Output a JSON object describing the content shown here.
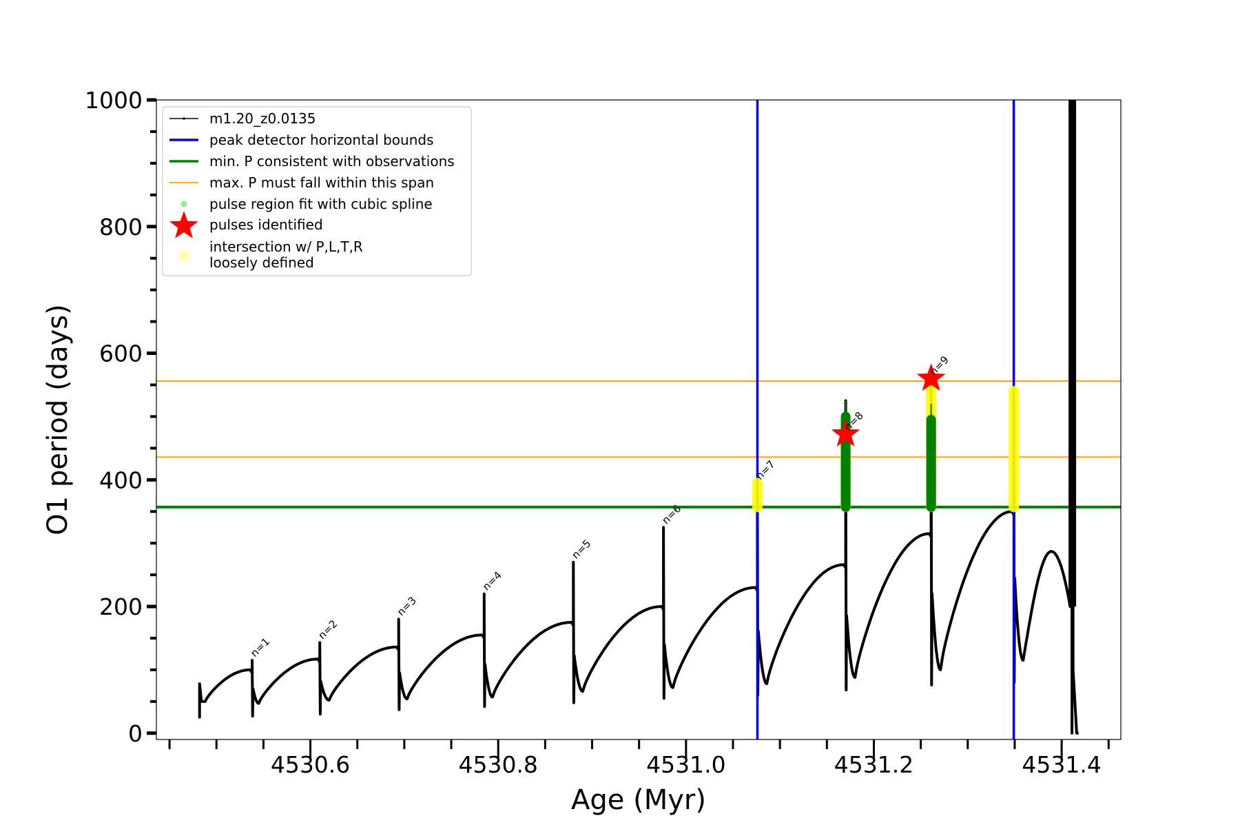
{
  "chart_data": {
    "type": "line",
    "xlabel": "Age (Myr)",
    "ylabel": "O1 period (days)",
    "xlim": [
      4530.436,
      4531.463
    ],
    "ylim": [
      -10,
      1000
    ],
    "x_ticks": [
      4530.6,
      4530.8,
      4531.0,
      4531.2,
      4531.4
    ],
    "x_tick_labels": [
      "4530.6",
      "4530.8",
      "4531.0",
      "4531.2",
      "4531.4"
    ],
    "y_ticks": [
      0,
      200,
      400,
      600,
      800,
      1000
    ],
    "y_tick_labels": [
      "0",
      "200",
      "400",
      "600",
      "800",
      "1000"
    ],
    "x_minor_step": 0.05,
    "y_minor_step": 50,
    "grid": false,
    "legend_placement": "top-left",
    "legend": [
      {
        "label": "m1.20_z0.0135",
        "kind": "line-dot",
        "color": "#000000"
      },
      {
        "label": "peak detector horizontal bounds",
        "kind": "line",
        "color": "#0000ff"
      },
      {
        "label": "min. P consistent with observations",
        "kind": "line",
        "color": "#008000"
      },
      {
        "label": "max. P must fall within this span",
        "kind": "thin-line",
        "color": "#ffa500"
      },
      {
        "label": "pulse region fit with cubic spline",
        "kind": "dot",
        "color": "#90ee90"
      },
      {
        "label": "pulses identified",
        "kind": "star",
        "color": "#ff0000"
      },
      {
        "label": "intersection w/ P,L,T,R",
        "label2": "loosely defined",
        "kind": "big-dot",
        "color": "#ffffb0"
      }
    ],
    "vertical_bounds": [
      4531.076,
      4531.349
    ],
    "min_period": 357,
    "max_period_span": [
      436,
      556
    ],
    "series_start": 4530.482,
    "cycles": [
      {
        "pulse": 4530.538,
        "pre_max": 100,
        "spike": 115,
        "low": 27,
        "min_t": 4530.545,
        "min": 47
      },
      {
        "pulse": 4530.61,
        "pre_max": 117,
        "spike": 143,
        "low": 30,
        "min_t": 4530.62,
        "min": 52
      },
      {
        "pulse": 4530.694,
        "pre_max": 136,
        "spike": 180,
        "low": 37,
        "min_t": 4530.703,
        "min": 54
      },
      {
        "pulse": 4530.785,
        "pre_max": 155,
        "spike": 220,
        "low": 42,
        "min_t": 4530.794,
        "min": 57
      },
      {
        "pulse": 4530.88,
        "pre_max": 175,
        "spike": 270,
        "low": 48,
        "min_t": 4530.89,
        "min": 66
      },
      {
        "pulse": 4530.976,
        "pre_max": 200,
        "spike": 325,
        "low": 55,
        "min_t": 4530.986,
        "min": 72
      },
      {
        "pulse": 4531.076,
        "pre_max": 230,
        "spike": 395,
        "low": 60,
        "min_t": 4531.086,
        "min": 78
      },
      {
        "pulse": 4531.17,
        "pre_max": 266,
        "spike": 525,
        "low": 68,
        "min_t": 4531.18,
        "min": 88
      },
      {
        "pulse": 4531.261,
        "pre_max": 315,
        "spike": 555,
        "low": 76,
        "min_t": 4531.271,
        "min": 100
      },
      {
        "pulse": 4531.349,
        "pre_max": 350,
        "spike": 540,
        "low": 80,
        "min_t": 4531.359,
        "min": 115
      }
    ],
    "first_min": 50,
    "tail": {
      "max_t": 4531.389,
      "max": 287,
      "drop_t": 4531.409,
      "drop": 200,
      "spike_t": 4531.411,
      "spike": 1000,
      "end_t": 4531.418,
      "end": 0
    },
    "pulse_labels": [
      {
        "label": "n=1",
        "x": 4530.538,
        "y": 115
      },
      {
        "label": "n=2",
        "x": 4530.61,
        "y": 143
      },
      {
        "label": "n=3",
        "x": 4530.694,
        "y": 180
      },
      {
        "label": "n=4",
        "x": 4530.785,
        "y": 220
      },
      {
        "label": "n=5",
        "x": 4530.88,
        "y": 270
      },
      {
        "label": "n=6",
        "x": 4530.976,
        "y": 325
      },
      {
        "label": "n=7",
        "x": 4531.076,
        "y": 395
      },
      {
        "label": "n=8",
        "x": 4531.17,
        "y": 472
      },
      {
        "label": "n=9",
        "x": 4531.261,
        "y": 560
      }
    ],
    "pulses_identified": [
      {
        "x": 4531.17,
        "y": 472
      },
      {
        "x": 4531.261,
        "y": 560
      }
    ],
    "spline_regions": [
      {
        "x": 4531.17,
        "y0": 357,
        "y1": 500
      },
      {
        "x": 4531.261,
        "y0": 357,
        "y1": 495
      }
    ],
    "loosely_defined_regions": [
      {
        "x": 4531.076,
        "y0": 357,
        "y1": 395
      },
      {
        "x": 4531.17,
        "y0": 357,
        "y1": 480
      },
      {
        "x": 4531.261,
        "y0": 357,
        "y1": 555
      },
      {
        "x": 4531.349,
        "y0": 357,
        "y1": 540
      }
    ]
  }
}
